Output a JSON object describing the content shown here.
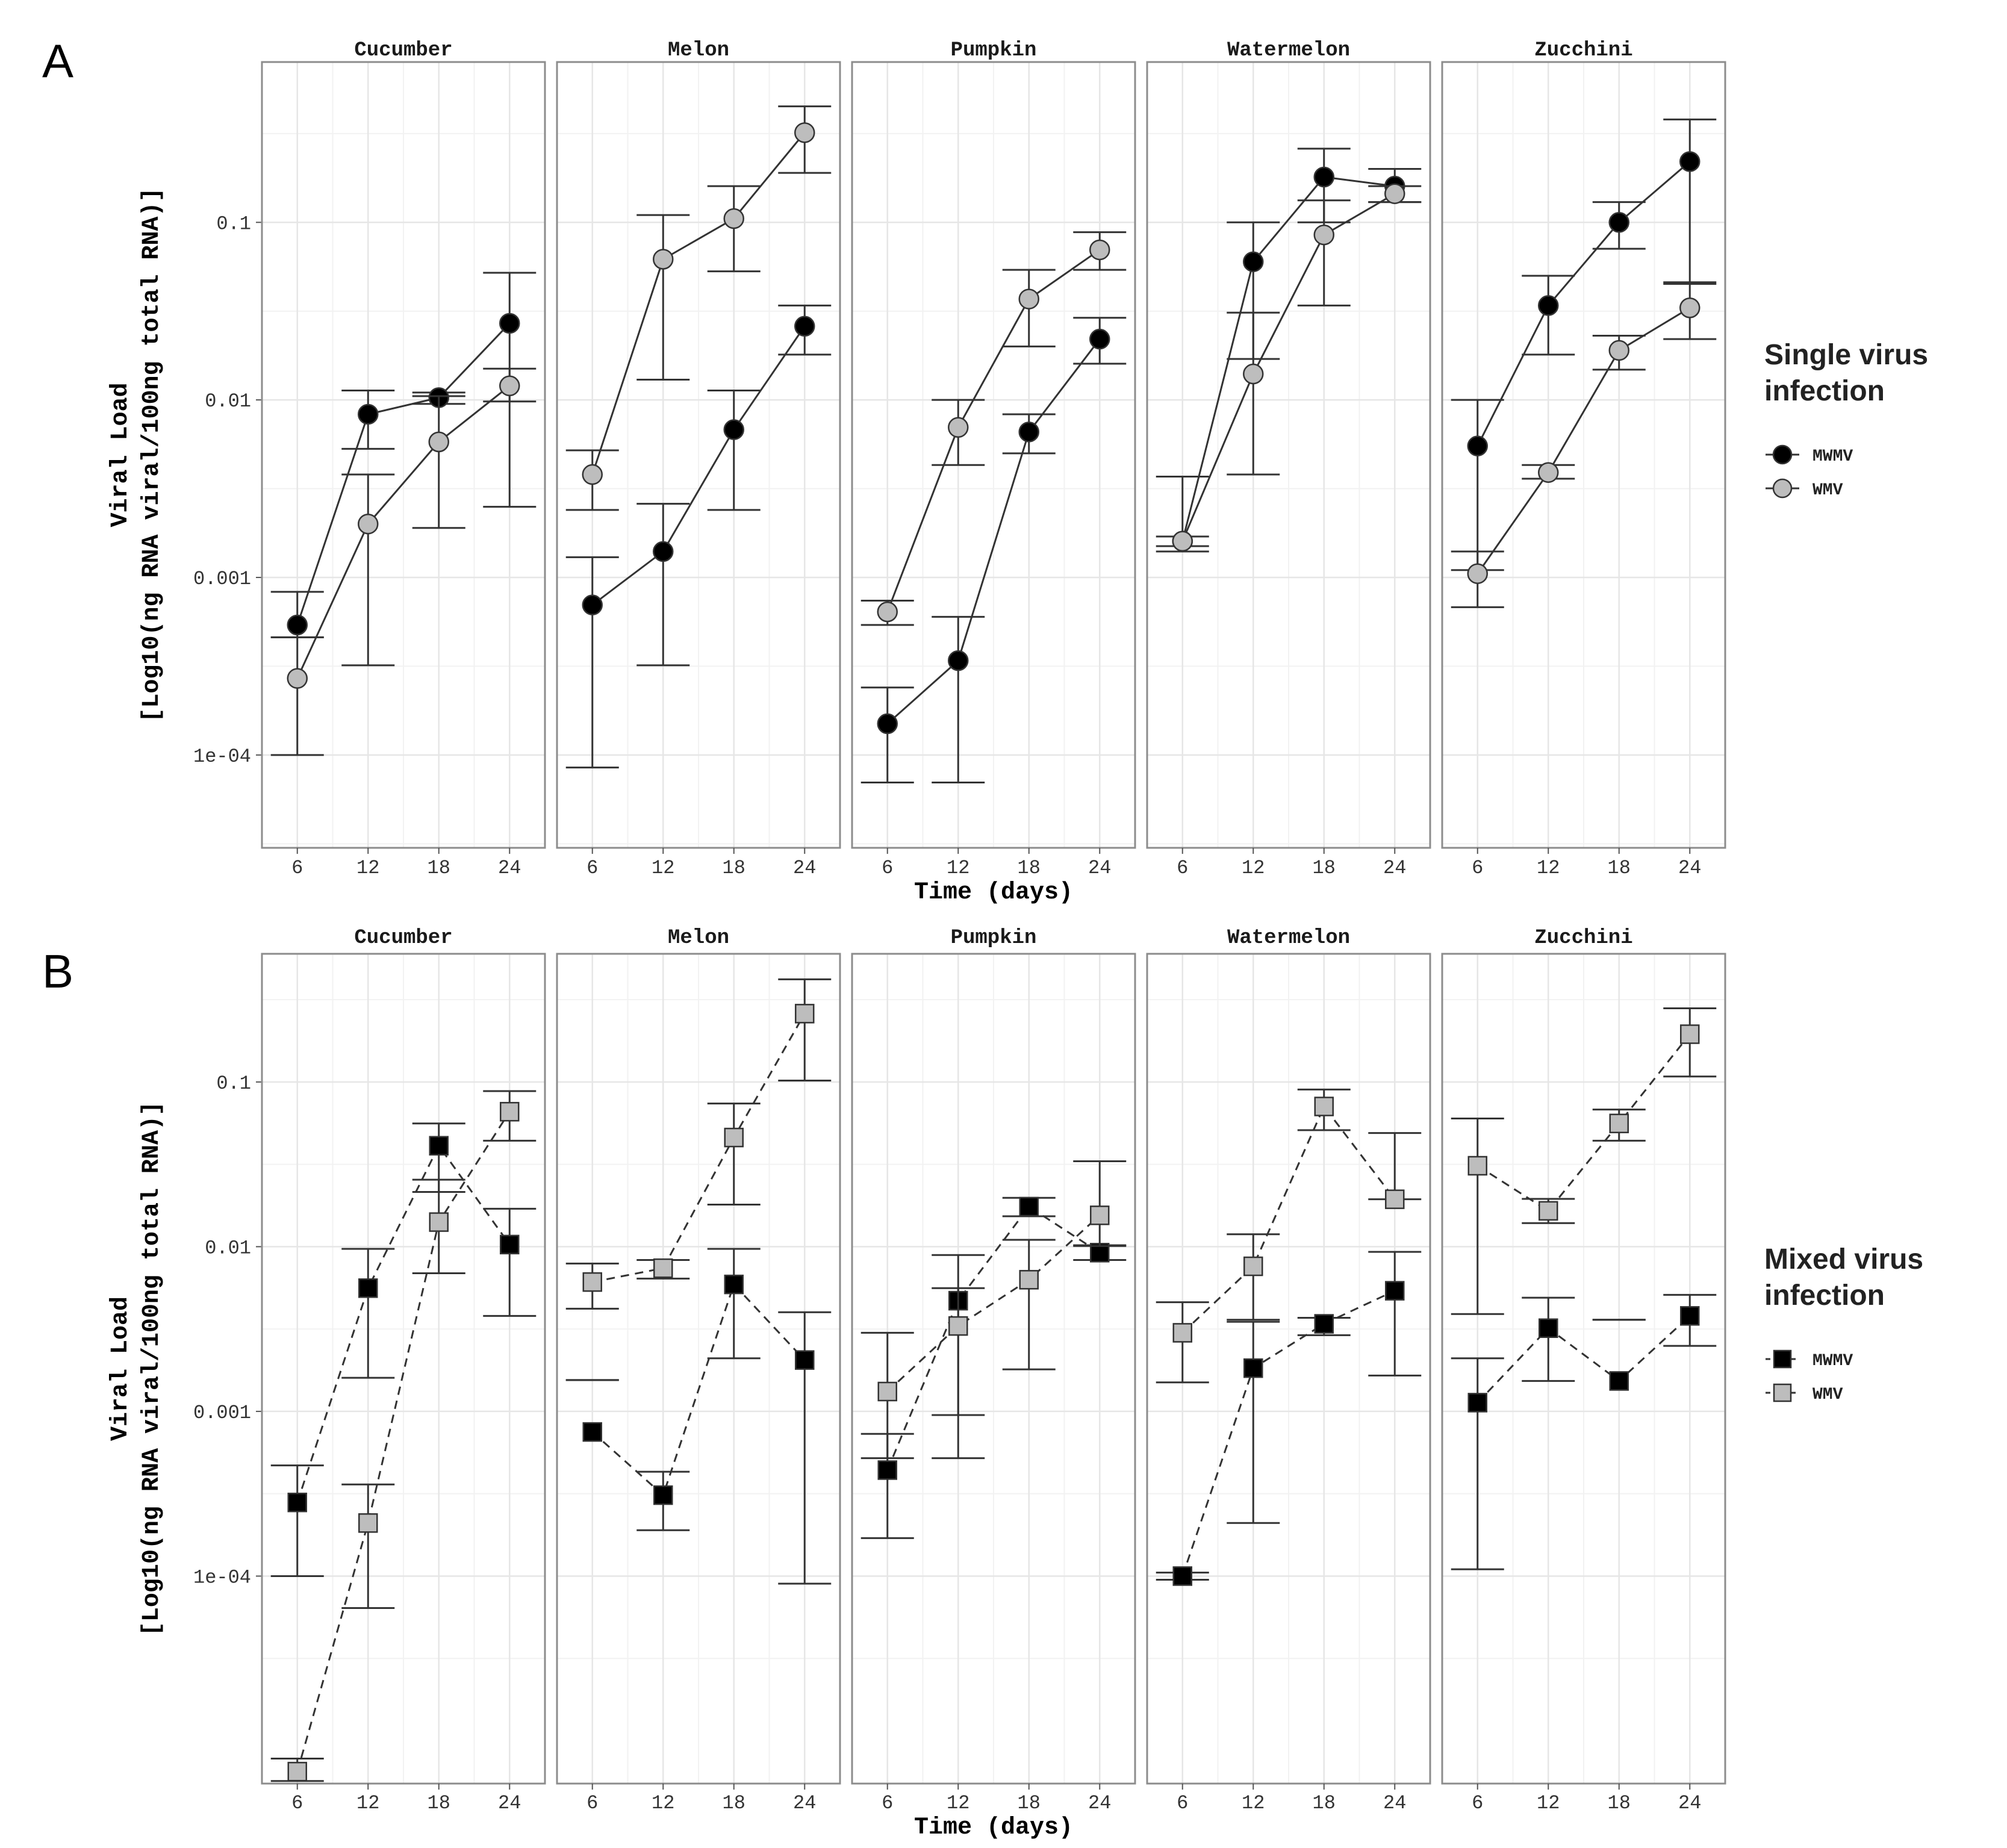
{
  "chart_data": [
    {
      "panel_label": "A",
      "type": "line",
      "marker": "circle",
      "line_style": "solid",
      "facets": [
        "Cucumber",
        "Melon",
        "Pumpkin",
        "Watermelon",
        "Zucchini"
      ],
      "x": [
        6,
        12,
        18,
        24
      ],
      "xlabel": "Time (days)",
      "ylabel_line1": "Viral Load",
      "ylabel_line2": "[Log10(ng RNA viral/100ng total RNA)]",
      "yscale": "log10",
      "ylim": [
        3e-05,
        0.8
      ],
      "yticks": [
        0.0001,
        0.001,
        0.01,
        0.1
      ],
      "ytick_labels": [
        "1e-04",
        "0.001",
        "0.01",
        "0.1"
      ],
      "legend_title_line1": "Single virus",
      "legend_title_line2": "infection",
      "series": [
        {
          "name": "MWMV",
          "color": "#000000",
          "facets": {
            "Cucumber": {
              "values": [
                0.00054,
                0.0083,
                0.0103,
                0.027
              ],
              "lo": [
                0.00046,
                0.0053,
                0.0095,
                0.0098
              ],
              "hi": [
                0.00083,
                0.0113,
                0.011,
                0.052
              ]
            },
            "Melon": {
              "values": [
                0.0007,
                0.0014,
                0.0068,
                0.026
              ],
              "lo": [
                8.5e-05,
                0.00032,
                0.0024,
                0.018
              ],
              "hi": [
                0.0013,
                0.0026,
                0.0113,
                0.034
              ]
            },
            "Pumpkin": {
              "values": [
                0.00015,
                0.00034,
                0.0066,
                0.022
              ],
              "lo": [
                7e-05,
                7e-05,
                0.005,
                0.016
              ],
              "hi": [
                0.00024,
                0.0006,
                0.0083,
                0.029
              ]
            },
            "Watermelon": {
              "values": [
                0.0016,
                0.06,
                0.18,
                0.16
              ],
              "lo": [
                0.0014,
                0.017,
                0.1,
                0.13
              ],
              "hi": [
                0.0037,
                0.1,
                0.26,
                0.2
              ]
            },
            "Zucchini": {
              "values": [
                0.0055,
                0.034,
                0.1,
                0.22
              ],
              "lo": [
                0.0011,
                0.018,
                0.071,
                0.046
              ],
              "hi": [
                0.01,
                0.05,
                0.13,
                0.38
              ]
            }
          }
        },
        {
          "name": "WMV",
          "color": "#bdbdbd",
          "facets": {
            "Cucumber": {
              "values": [
                0.00027,
                0.002,
                0.0058,
                0.012
              ],
              "lo": [
                0.0001,
                0.00032,
                0.0019,
                0.0025
              ],
              "hi": [
                0.00046,
                0.0038,
                0.0105,
                0.015
              ]
            },
            "Melon": {
              "values": [
                0.0038,
                0.062,
                0.105,
                0.32
              ],
              "lo": [
                0.0024,
                0.013,
                0.053,
                0.19
              ],
              "hi": [
                0.0052,
                0.11,
                0.16,
                0.45
              ]
            },
            "Pumpkin": {
              "values": [
                0.00064,
                0.007,
                0.037,
                0.07
              ],
              "lo": [
                0.00054,
                0.0043,
                0.02,
                0.054
              ],
              "hi": [
                0.00074,
                0.01,
                0.054,
                0.088
              ]
            },
            "Watermelon": {
              "values": [
                0.0016,
                0.014,
                0.085,
                0.145
              ],
              "lo": [
                0.0015,
                0.0038,
                0.034,
                0.13
              ],
              "hi": [
                0.0017,
                0.031,
                0.133,
                0.16
              ]
            },
            "Zucchini": {
              "values": [
                0.00105,
                0.0039,
                0.019,
                0.033
              ],
              "lo": [
                0.00068,
                0.0036,
                0.0148,
                0.022
              ],
              "hi": [
                0.0014,
                0.0043,
                0.023,
                0.045
              ]
            }
          }
        }
      ]
    },
    {
      "panel_label": "B",
      "type": "line",
      "marker": "square",
      "line_style": "dashed",
      "facets": [
        "Cucumber",
        "Melon",
        "Pumpkin",
        "Watermelon",
        "Zucchini"
      ],
      "x": [
        6,
        12,
        18,
        24
      ],
      "xlabel": "Time (days)",
      "ylabel_line1": "Viral Load",
      "ylabel_line2": "[Log10(ng RNA viral/100ng total RNA)]",
      "yscale": "log10",
      "ylim": [
        5.5e-06,
        0.6
      ],
      "yticks": [
        0.0001,
        0.001,
        0.01,
        0.1
      ],
      "ytick_labels": [
        "1e-04",
        "0.001",
        "0.01",
        "0.1"
      ],
      "legend_title_line1": "Mixed virus",
      "legend_title_line2": "infection",
      "series": [
        {
          "name": "MWMV",
          "color": "#000000",
          "facets": {
            "Cucumber": {
              "values": [
                0.00028,
                0.0056,
                0.041,
                0.0103
              ],
              "lo": [
                0.0001,
                0.0016,
                0.0215,
                0.0038
              ],
              "hi": [
                0.00047,
                0.0097,
                0.056,
                0.017
              ]
            },
            "Melon": {
              "values": [
                0.00075,
                0.00031,
                0.0059,
                0.00205
              ],
              "lo": [
                0.00155,
                0.00019,
                0.0021,
                9e-05
              ],
              "hi": [
                0.00155,
                0.00043,
                0.0097,
                0.004
              ]
            },
            "Pumpkin": {
              "values": [
                0.00044,
                0.0047,
                0.0175,
                0.0092
              ],
              "lo": [
                0.00017,
                0.00095,
                0.0153,
                0.0083
              ],
              "hi": [
                0.00073,
                0.0089,
                0.0198,
                0.0102
              ]
            },
            "Watermelon": {
              "values": [
                0.0001,
                0.00183,
                0.0034,
                0.0054
              ],
              "lo": [
                9.5e-05,
                0.00021,
                0.0029,
                0.00165
              ],
              "hi": [
                0.000105,
                0.0035,
                0.0037,
                0.0093
              ]
            },
            "Zucchini": {
              "values": [
                0.00113,
                0.0032,
                0.00153,
                0.0038
              ],
              "lo": [
                0.00011,
                0.00153,
                0.0036,
                0.0025
              ],
              "hi": [
                0.0021,
                0.0049,
                0.0036,
                0.0051
              ]
            }
          }
        },
        {
          "name": "WMV",
          "color": "#bdbdbd",
          "facets": {
            "Cucumber": {
              "values": [
                6.5e-06,
                0.00021,
                0.0141,
                0.066
              ],
              "lo": [
                5.7e-06,
                6.4e-05,
                0.0069,
                0.044
              ],
              "hi": [
                7.8e-06,
                0.00036,
                0.0255,
                0.088
              ]
            },
            "Melon": {
              "values": [
                0.0061,
                0.0074,
                0.046,
                0.26
              ],
              "lo": [
                0.0042,
                0.0064,
                0.018,
                0.102
              ],
              "hi": [
                0.0079,
                0.0083,
                0.074,
                0.42
              ]
            },
            "Pumpkin": {
              "values": [
                0.00132,
                0.0033,
                0.0063,
                0.0155
              ],
              "lo": [
                0.00052,
                0.00052,
                0.0018,
                0.0101
              ],
              "hi": [
                0.003,
                0.0056,
                0.011,
                0.033
              ]
            },
            "Watermelon": {
              "values": [
                0.003,
                0.0076,
                0.071,
                0.0194
              ],
              "lo": [
                0.0015,
                0.0036,
                0.051,
                0.0194
              ],
              "hi": [
                0.0046,
                0.0119,
                0.09,
                0.049
              ]
            },
            "Zucchini": {
              "values": [
                0.031,
                0.0165,
                0.056,
                0.195
              ],
              "lo": [
                0.0039,
                0.0139,
                0.044,
                0.108
              ],
              "hi": [
                0.06,
                0.0195,
                0.068,
                0.28
              ]
            }
          }
        }
      ]
    }
  ]
}
